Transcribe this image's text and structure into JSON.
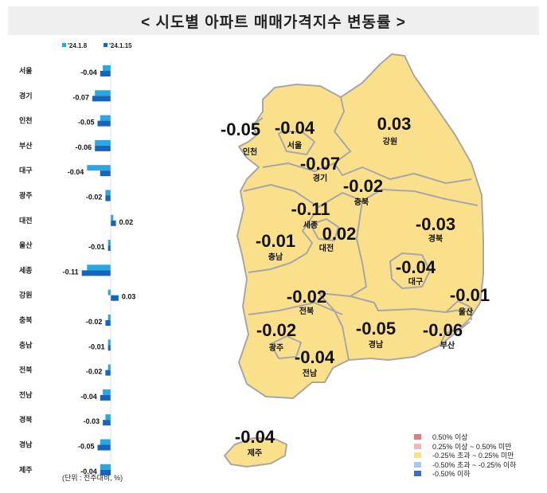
{
  "title": "< 시도별 아파트 매매가격지수 변동률 >",
  "unit_note": "(단위 : 전주대비, %)",
  "chart_data": {
    "type": "bar",
    "orientation": "horizontal",
    "categories": [
      "서울",
      "경기",
      "인천",
      "부산",
      "대구",
      "광주",
      "대전",
      "울산",
      "세종",
      "강원",
      "충북",
      "충남",
      "전북",
      "전남",
      "경북",
      "경남",
      "제주"
    ],
    "series": [
      {
        "name": "'24.1.8",
        "color": "#29a8e0",
        "values": [
          -0.03,
          -0.06,
          -0.04,
          -0.06,
          -0.09,
          -0.02,
          0.01,
          -0.01,
          -0.09,
          -0.01,
          -0.01,
          -0.01,
          -0.01,
          -0.03,
          -0.02,
          -0.04,
          -0.04
        ]
      },
      {
        "name": "'24.1.15",
        "color": "#1565c0",
        "values": [
          -0.04,
          -0.07,
          -0.05,
          -0.06,
          -0.04,
          -0.02,
          0.02,
          -0.01,
          -0.11,
          0.03,
          -0.02,
          -0.01,
          -0.02,
          -0.04,
          -0.03,
          -0.05,
          -0.04
        ]
      }
    ],
    "data_labels": [
      "-0.04",
      "-0.07",
      "-0.05",
      "-0.06",
      "-0.04",
      "-0.02",
      "0.02",
      "-0.01",
      "-0.11",
      "0.03",
      "-0.02",
      "-0.01",
      "-0.02",
      "-0.04",
      "-0.03",
      "-0.05",
      "-0.04"
    ],
    "legend_position": "top",
    "grid": false
  },
  "map": {
    "regions": [
      {
        "name": "서울",
        "value": "-0.04"
      },
      {
        "name": "인천",
        "value": "-0.05"
      },
      {
        "name": "경기",
        "value": "-0.07"
      },
      {
        "name": "강원",
        "value": "0.03"
      },
      {
        "name": "충북",
        "value": "-0.02"
      },
      {
        "name": "세종",
        "value": "-0.11"
      },
      {
        "name": "대전",
        "value": "0.02"
      },
      {
        "name": "충남",
        "value": "-0.01"
      },
      {
        "name": "경북",
        "value": "-0.03"
      },
      {
        "name": "대구",
        "value": "-0.04"
      },
      {
        "name": "울산",
        "value": "-0.01"
      },
      {
        "name": "전북",
        "value": "-0.02"
      },
      {
        "name": "광주",
        "value": "-0.02"
      },
      {
        "name": "전남",
        "value": "-0.04"
      },
      {
        "name": "경남",
        "value": "-0.05"
      },
      {
        "name": "부산",
        "value": "-0.06"
      },
      {
        "name": "제주",
        "value": "-0.04"
      }
    ],
    "fill_color": "#fbe08c",
    "border_color": "#a7a7a7"
  },
  "legend": [
    {
      "label": "0.50% 이상",
      "color": "#e8797b"
    },
    {
      "label": "0.25% 이상 ~ 0.50% 미만",
      "color": "#f4b6b4"
    },
    {
      "label": "-0.25% 초과 ~ 0.25% 미만",
      "color": "#fbe08c"
    },
    {
      "label": "-0.50% 초과 ~ -0.25% 이하",
      "color": "#a9c8ec"
    },
    {
      "label": "-0.50% 이하",
      "color": "#3a6fc4"
    }
  ]
}
